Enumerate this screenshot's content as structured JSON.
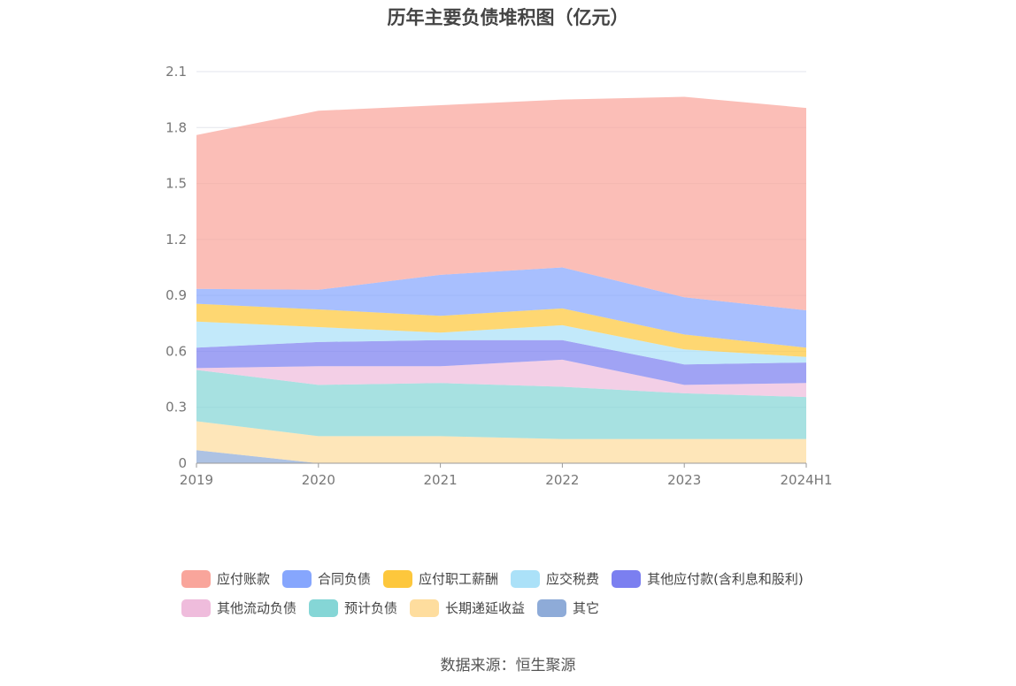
{
  "chart_data": {
    "type": "area",
    "stacked": true,
    "title": "历年主要负债堆积图（亿元）",
    "x": [
      "2019",
      "2020",
      "2021",
      "2022",
      "2023",
      "2024H1"
    ],
    "ylim": [
      0,
      2.1
    ],
    "yticks": [
      "0",
      "0.3",
      "0.6",
      "0.9",
      "1.2",
      "1.5",
      "1.8",
      "2.1"
    ],
    "grid": true,
    "legend_position": "bottom",
    "series": [
      {
        "name": "其它",
        "color": "#8eabd8",
        "values": [
          0.07,
          0.0,
          0.0,
          0.0,
          0.0,
          0.0
        ]
      },
      {
        "name": "长期递延收益",
        "color": "#fedd9e",
        "values": [
          0.155,
          0.145,
          0.145,
          0.13,
          0.13,
          0.13
        ]
      },
      {
        "name": "预计负债",
        "color": "#85d6d6",
        "values": [
          0.275,
          0.275,
          0.285,
          0.28,
          0.245,
          0.225
        ]
      },
      {
        "name": "其他流动负债",
        "color": "#efbcdc",
        "values": [
          0.01,
          0.1,
          0.09,
          0.145,
          0.045,
          0.075
        ]
      },
      {
        "name": "其他应付款(含利息和股利)",
        "color": "#7b7ff0",
        "values": [
          0.11,
          0.13,
          0.14,
          0.105,
          0.11,
          0.11
        ]
      },
      {
        "name": "应交税费",
        "color": "#abe1f8",
        "values": [
          0.14,
          0.08,
          0.04,
          0.08,
          0.08,
          0.03
        ]
      },
      {
        "name": "应付职工薪酬",
        "color": "#fdc73c",
        "values": [
          0.095,
          0.095,
          0.09,
          0.09,
          0.08,
          0.05
        ]
      },
      {
        "name": "合同负债",
        "color": "#86a6fd",
        "values": [
          0.08,
          0.105,
          0.22,
          0.22,
          0.2,
          0.2
        ]
      },
      {
        "name": "应付账款",
        "color": "#f9a59b",
        "values": [
          0.825,
          0.96,
          0.91,
          0.9,
          1.075,
          1.085
        ]
      }
    ],
    "legend_order": [
      "应付账款",
      "合同负债",
      "应付职工薪酬",
      "应交税费",
      "其他应付款(含利息和股利)",
      "其他流动负债",
      "预计负债",
      "长期递延收益",
      "其它"
    ]
  },
  "source": "数据来源：恒生聚源"
}
